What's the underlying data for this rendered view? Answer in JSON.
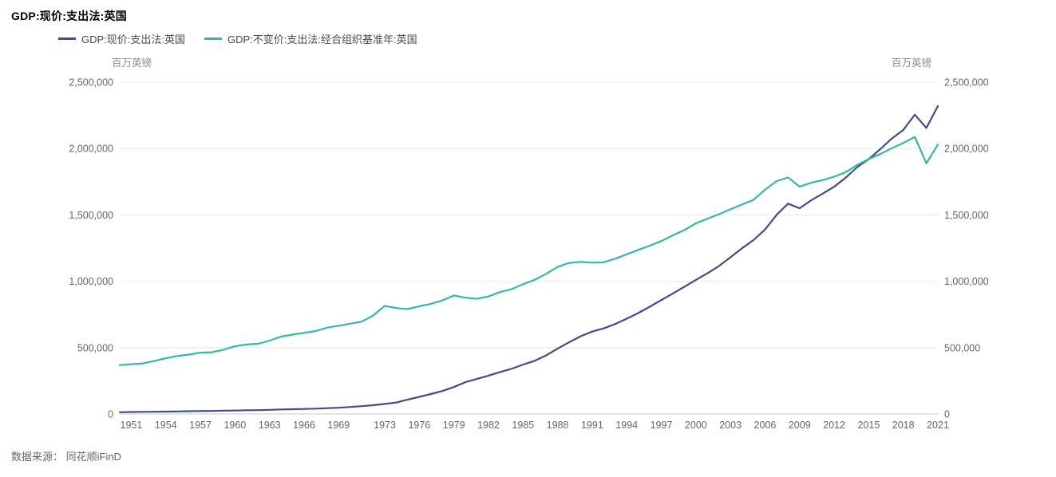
{
  "title": "GDP:现价:支出法:英国",
  "legend": [
    {
      "label": "GDP:现价:支出法:英国",
      "color": "#414d8b"
    },
    {
      "label": "GDP:不变价:支出法:经合组织基准年:英国",
      "color": "#33b8aa"
    }
  ],
  "axis_unit_left": "百万英镑",
  "axis_unit_right": "百万英镑",
  "source": "数据来源： 同花顺iFinD",
  "chart_data": {
    "type": "line",
    "title": "GDP:现价:支出法:英国",
    "xlabel": "",
    "ylabel": "百万英镑",
    "xlim": [
      1950,
      2021
    ],
    "ylim": [
      0,
      2500000
    ],
    "grid": true,
    "legend_position": "top-left",
    "y_ticks": [
      0,
      500000,
      1000000,
      1500000,
      2000000,
      2500000
    ],
    "x_tick_labels": [
      "1951",
      "1954",
      "1957",
      "1960",
      "1963",
      "1966",
      "1969",
      "1973",
      "1976",
      "1979",
      "1982",
      "1985",
      "1988",
      "1991",
      "1994",
      "1997",
      "2000",
      "2003",
      "2006",
      "2009",
      "2012",
      "2015",
      "2018",
      "2021"
    ],
    "x": [
      1950,
      1951,
      1952,
      1953,
      1954,
      1955,
      1956,
      1957,
      1958,
      1959,
      1960,
      1961,
      1962,
      1963,
      1964,
      1965,
      1966,
      1967,
      1968,
      1969,
      1970,
      1971,
      1972,
      1973,
      1974,
      1975,
      1976,
      1977,
      1978,
      1979,
      1980,
      1981,
      1982,
      1983,
      1984,
      1985,
      1986,
      1987,
      1988,
      1989,
      1990,
      1991,
      1992,
      1993,
      1994,
      1995,
      1996,
      1997,
      1998,
      1999,
      2000,
      2001,
      2002,
      2003,
      2004,
      2005,
      2006,
      2007,
      2008,
      2009,
      2010,
      2011,
      2012,
      2013,
      2014,
      2015,
      2016,
      2017,
      2018,
      2019,
      2020,
      2021
    ],
    "series": [
      {
        "name": "GDP:现价:支出法:英国",
        "color": "#414d8b",
        "values": [
          13000,
          15000,
          16000,
          17000,
          18000,
          19000,
          21000,
          22000,
          23000,
          25000,
          26000,
          28000,
          29000,
          31000,
          34000,
          36000,
          38000,
          40000,
          44000,
          47000,
          53000,
          59000,
          66000,
          76000,
          86000,
          109000,
          129000,
          150000,
          173000,
          203000,
          240000,
          264000,
          289000,
          316000,
          340000,
          372000,
          400000,
          441000,
          492000,
          540000,
          586000,
          621000,
          645000,
          678000,
          718000,
          760000,
          808000,
          858000,
          908000,
          958000,
          1010000,
          1060000,
          1115000,
          1180000,
          1248000,
          1310000,
          1390000,
          1500000,
          1585000,
          1550000,
          1610000,
          1660000,
          1712000,
          1780000,
          1860000,
          1920000,
          1995000,
          2075000,
          2140000,
          2255000,
          2155000,
          2320000
        ]
      },
      {
        "name": "GDP:不变价:支出法:经合组织基准年:英国",
        "color": "#33b8aa",
        "values": [
          368000,
          375000,
          381000,
          399000,
          420000,
          437000,
          448000,
          462000,
          465000,
          484000,
          510000,
          524000,
          529000,
          553000,
          583000,
          598000,
          611000,
          625000,
          650000,
          665000,
          680000,
          696000,
          742000,
          815000,
          798000,
          790000,
          812000,
          830000,
          856000,
          893000,
          876000,
          868000,
          886000,
          918000,
          940000,
          978000,
          1010000,
          1056000,
          1108000,
          1138000,
          1146000,
          1140000,
          1143000,
          1170000,
          1203000,
          1236000,
          1268000,
          1303000,
          1346000,
          1386000,
          1436000,
          1472000,
          1505000,
          1542000,
          1578000,
          1613000,
          1690000,
          1755000,
          1782000,
          1713000,
          1742000,
          1762000,
          1788000,
          1822000,
          1876000,
          1921000,
          1958000,
          2003000,
          2042000,
          2088000,
          1888000,
          2030000
        ]
      }
    ]
  }
}
